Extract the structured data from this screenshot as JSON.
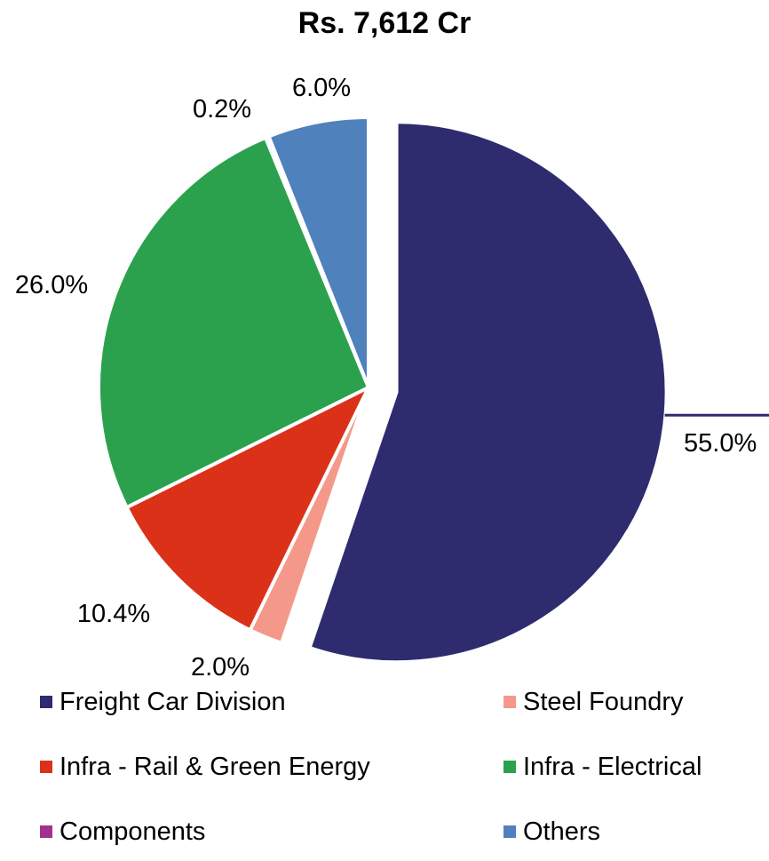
{
  "chart_data": {
    "type": "pie",
    "title": "Rs. 7,612 Cr",
    "slices": [
      {
        "label": "Freight Car Division",
        "value": 55.0,
        "value_label": "55.0%",
        "color": "#2E2C6E",
        "exploded": true
      },
      {
        "label": "Steel Foundry",
        "value": 2.0,
        "value_label": "2.0%",
        "color": "#F4998A"
      },
      {
        "label": "Infra - Rail & Green Energy",
        "value": 10.4,
        "value_label": "10.4%",
        "color": "#DC3119"
      },
      {
        "label": "Infra - Electrical",
        "value": 26.0,
        "value_label": "26.0%",
        "color": "#2BA14D"
      },
      {
        "label": "Components",
        "value": 0.2,
        "value_label": "0.2%",
        "color": "#A0318F"
      },
      {
        "label": "Others",
        "value": 6.0,
        "value_label": "6.0%",
        "color": "#4F81BD"
      }
    ],
    "legend_position": "bottom",
    "legend_columns": 2
  }
}
